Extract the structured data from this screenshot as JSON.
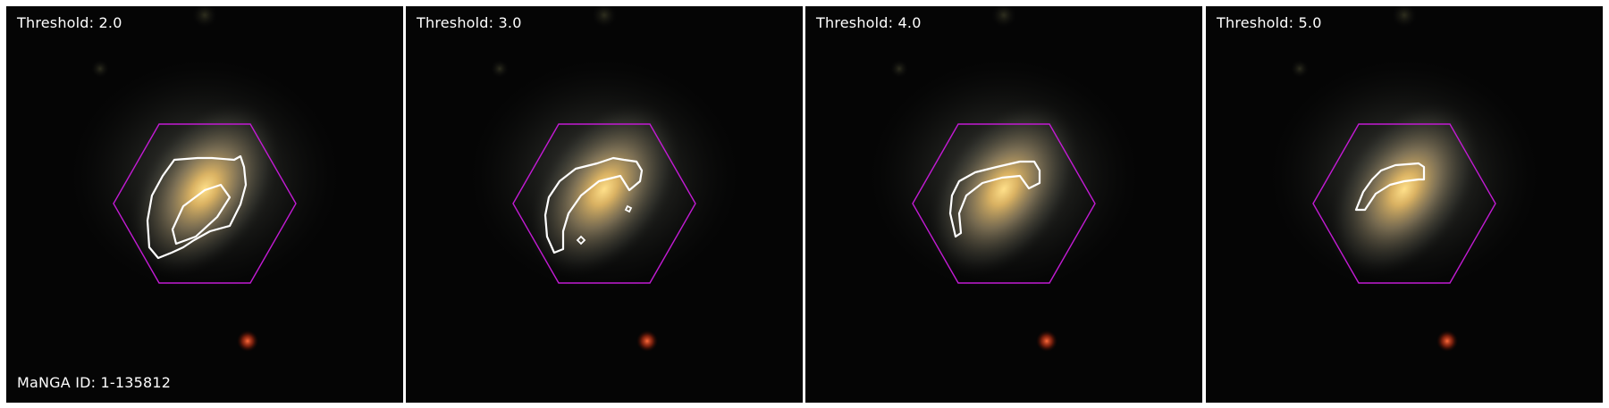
{
  "figure": {
    "manga_id_label": "MaNGA ID: 1-135812",
    "hexagon_color": "#c21bd3",
    "contour_color": "#ffffff"
  },
  "panels": [
    {
      "threshold_label": "Threshold: 2.0"
    },
    {
      "threshold_label": "Threshold: 3.0"
    },
    {
      "threshold_label": "Threshold: 4.0"
    },
    {
      "threshold_label": "Threshold: 5.0"
    }
  ]
}
